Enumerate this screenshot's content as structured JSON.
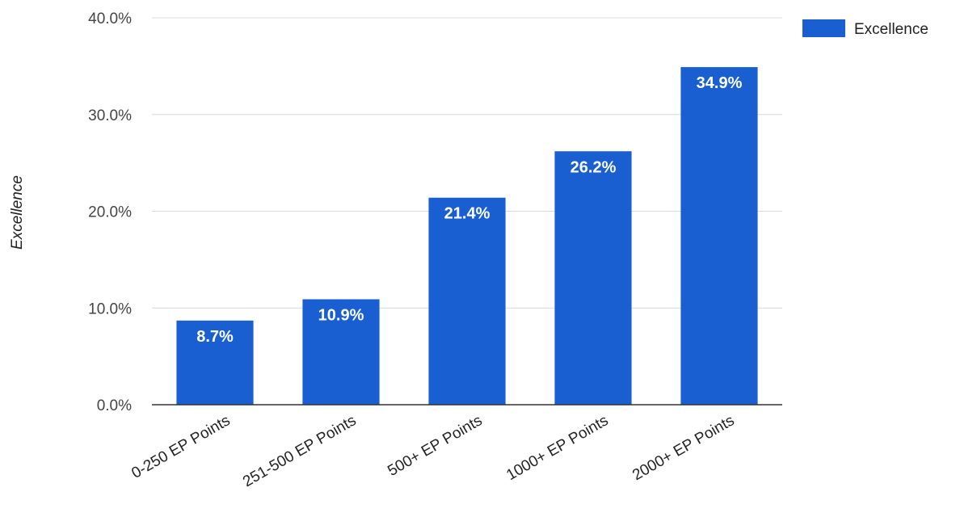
{
  "chart_data": {
    "type": "bar",
    "categories": [
      "0-250 EP Points",
      "251-500 EP Points",
      "500+ EP Points",
      "1000+ EP Points",
      "2000+ EP Points"
    ],
    "series": [
      {
        "name": "Excellence",
        "values": [
          8.7,
          10.9,
          21.4,
          26.2,
          34.9
        ],
        "labels": [
          "8.7%",
          "10.9%",
          "21.4%",
          "26.2%",
          "34.9%"
        ],
        "color": "#1a5fd1"
      }
    ],
    "title": "",
    "xlabel": "",
    "ylabel": "Excellence",
    "ylim": [
      0,
      40
    ],
    "yticks": [
      0,
      10,
      20,
      30,
      40
    ],
    "ytick_labels": [
      "0.0%",
      "10.0%",
      "20.0%",
      "30.0%",
      "40.0%"
    ],
    "grid": true,
    "legend": {
      "position": "top-right",
      "entries": [
        "Excellence"
      ]
    }
  }
}
